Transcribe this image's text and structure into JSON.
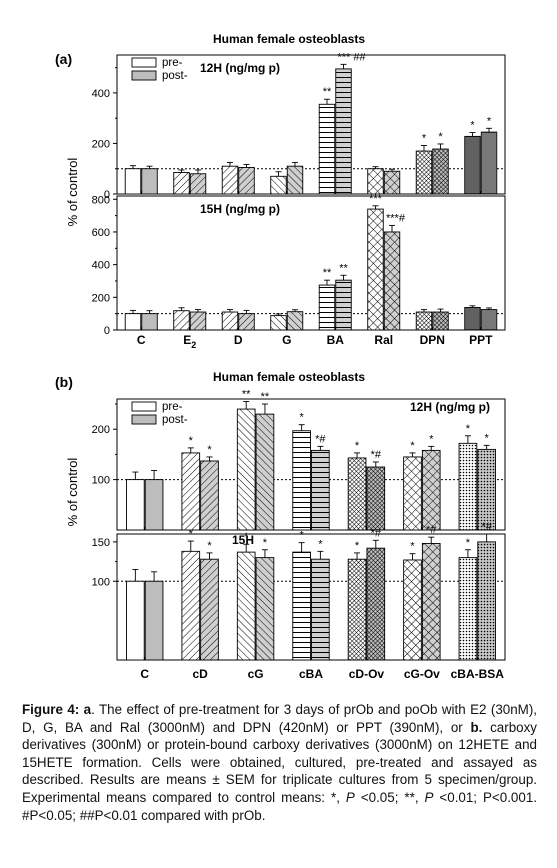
{
  "chart_data": [
    {
      "panel_label": "(a)",
      "title": "Human female osteoblasts",
      "type": "bar",
      "ylabel": "% of control",
      "legend": [
        "pre-",
        "post-"
      ],
      "legend_placement": "top-left",
      "reference_line": 100,
      "categories": [
        "C",
        "E2",
        "D",
        "G",
        "BA",
        "Ral",
        "DPN",
        "PPT"
      ],
      "subplots": [
        {
          "label": "12H (ng/mg p)",
          "ylim": [
            0,
            550
          ],
          "yticks": [
            0,
            200,
            400
          ],
          "series": [
            {
              "name": "pre-",
              "values": [
                100,
                85,
                110,
                70,
                355,
                100,
                170,
                228
              ],
              "errors": [
                12,
                10,
                15,
                18,
                20,
                8,
                22,
                15
              ]
            },
            {
              "name": "post-",
              "values": [
                100,
                80,
                105,
                110,
                495,
                90,
                178,
                245
              ],
              "errors": [
                10,
                15,
                12,
                15,
                18,
                8,
                20,
                15
              ]
            }
          ],
          "annotations": [
            {
              "category": "BA",
              "series": "pre-",
              "text": "**"
            },
            {
              "category": "BA",
              "series": "post-",
              "text": "*** ##"
            },
            {
              "category": "DPN",
              "series": "pre-",
              "text": "*"
            },
            {
              "category": "DPN",
              "series": "post-",
              "text": "*"
            },
            {
              "category": "PPT",
              "series": "pre-",
              "text": "*"
            },
            {
              "category": "PPT",
              "series": "post-",
              "text": "*"
            }
          ]
        },
        {
          "label": "15H (ng/mg p)",
          "ylim": [
            0,
            820
          ],
          "yticks": [
            0,
            200,
            400,
            600,
            800
          ],
          "series": [
            {
              "name": "pre-",
              "values": [
                100,
                118,
                110,
                88,
                275,
                740,
                110,
                138
              ],
              "errors": [
                20,
                18,
                15,
                10,
                30,
                20,
                15,
                10
              ]
            },
            {
              "name": "post-",
              "values": [
                100,
                110,
                100,
                112,
                305,
                600,
                110,
                125
              ],
              "errors": [
                18,
                15,
                20,
                12,
                30,
                40,
                18,
                10
              ]
            }
          ],
          "annotations": [
            {
              "category": "BA",
              "series": "pre-",
              "text": "**"
            },
            {
              "category": "BA",
              "series": "post-",
              "text": "**"
            },
            {
              "category": "Ral",
              "series": "pre-",
              "text": "***"
            },
            {
              "category": "Ral",
              "series": "post-",
              "text": "***#"
            }
          ]
        }
      ]
    },
    {
      "panel_label": "(b)",
      "title": "Human female osteoblasts",
      "type": "bar",
      "ylabel": "% of control",
      "legend": [
        "pre-",
        "post-"
      ],
      "legend_placement": "top-left",
      "reference_line": 100,
      "categories": [
        "C",
        "cD",
        "cG",
        "cBA",
        "cD-Ov",
        "cG-Ov",
        "cBA-BSA"
      ],
      "subplots": [
        {
          "label": "12H (ng/mg p)",
          "ylim": [
            0,
            260
          ],
          "yticks": [
            100,
            200
          ],
          "series": [
            {
              "name": "pre-",
              "values": [
                100,
                153,
                240,
                197,
                143,
                145,
                172
              ],
              "errors": [
                15,
                10,
                15,
                12,
                10,
                8,
                15
              ]
            },
            {
              "name": "post-",
              "values": [
                100,
                137,
                230,
                158,
                125,
                158,
                160
              ],
              "errors": [
                18,
                8,
                20,
                8,
                10,
                8,
                8
              ]
            }
          ],
          "annotations": [
            {
              "category": "cD",
              "series": "pre-",
              "text": "*"
            },
            {
              "category": "cD",
              "series": "post-",
              "text": "*"
            },
            {
              "category": "cG",
              "series": "pre-",
              "text": "**"
            },
            {
              "category": "cG",
              "series": "post-",
              "text": "**"
            },
            {
              "category": "cBA",
              "series": "pre-",
              "text": "*"
            },
            {
              "category": "cBA",
              "series": "post-",
              "text": "*#"
            },
            {
              "category": "cD-Ov",
              "series": "pre-",
              "text": "*"
            },
            {
              "category": "cD-Ov",
              "series": "post-",
              "text": "*#"
            },
            {
              "category": "cG-Ov",
              "series": "pre-",
              "text": "*"
            },
            {
              "category": "cG-Ov",
              "series": "post-",
              "text": "*"
            },
            {
              "category": "cBA-BSA",
              "series": "pre-",
              "text": "*"
            },
            {
              "category": "cBA-BSA",
              "series": "post-",
              "text": "*"
            }
          ]
        },
        {
          "label": "15H",
          "ylim": [
            0,
            160
          ],
          "yticks": [
            100,
            150
          ],
          "series": [
            {
              "name": "pre-",
              "values": [
                100,
                138,
                137,
                137,
                128,
                127,
                130
              ],
              "errors": [
                15,
                13,
                10,
                12,
                8,
                8,
                10
              ]
            },
            {
              "name": "post-",
              "values": [
                100,
                128,
                130,
                128,
                142,
                148,
                150
              ],
              "errors": [
                12,
                8,
                10,
                10,
                10,
                8,
                10
              ]
            }
          ],
          "annotations": [
            {
              "category": "cD",
              "series": "pre-",
              "text": "*"
            },
            {
              "category": "cD",
              "series": "post-",
              "text": "*"
            },
            {
              "category": "cG",
              "series": "pre-",
              "text": "*"
            },
            {
              "category": "cG",
              "series": "post-",
              "text": "*"
            },
            {
              "category": "cBA",
              "series": "pre-",
              "text": "*"
            },
            {
              "category": "cBA",
              "series": "post-",
              "text": "*"
            },
            {
              "category": "cD-Ov",
              "series": "pre-",
              "text": "*"
            },
            {
              "category": "cD-Ov",
              "series": "post-",
              "text": "*#"
            },
            {
              "category": "cG-Ov",
              "series": "pre-",
              "text": "*"
            },
            {
              "category": "cG-Ov",
              "series": "post-",
              "text": "*#"
            },
            {
              "category": "cBA-BSA",
              "series": "pre-",
              "text": "*"
            },
            {
              "category": "cBA-BSA",
              "series": "post-",
              "text": "*#"
            }
          ]
        }
      ]
    }
  ],
  "caption": {
    "label": "Figure 4:",
    "part_a": "a",
    "text_a": ". The effect of pre-treatment for 3 days of prOb and poOb with E2 (30nM), D, G, BA and Ral (3000nM) and DPN (420nM) or PPT (390nM), or ",
    "part_b": "b.",
    "text_b": " carboxy derivatives (300nM) or protein-bound carboxy derivatives (3000nM) on 12HETE and 15HETE formation. Cells were obtained, cultured, pre-treated and assayed as described. Results are means ± SEM for triplicate cultures from 5 specimen/group. Experimental means compared to control means: *, ",
    "p1": "P",
    "t1": " <0.05; **, ",
    "p2": "P",
    "t2": " <0.01; P<0.001. #P<0.05; ##P<0.01 compared with prOb."
  }
}
